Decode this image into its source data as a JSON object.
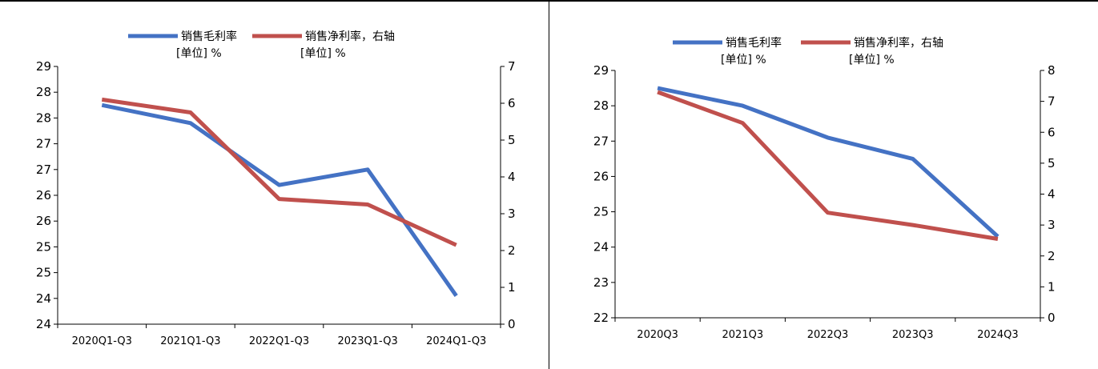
{
  "chart_data": [
    {
      "type": "line",
      "categories": [
        "2020Q1-Q3",
        "2021Q1-Q3",
        "2022Q1-Q3",
        "2023Q1-Q3",
        "2024Q1-Q3"
      ],
      "y_left": {
        "range": [
          24,
          29
        ],
        "tick_labels": [
          "24",
          "24",
          "25",
          "25",
          "26",
          "26",
          "27",
          "27",
          "28",
          "28",
          "29"
        ]
      },
      "y_right": {
        "range": [
          0,
          7
        ],
        "tick_labels": [
          "0",
          "1",
          "2",
          "3",
          "4",
          "5",
          "6",
          "7"
        ]
      },
      "series": [
        {
          "name": "销售毛利率",
          "unit": "[单位] %",
          "axis": "left",
          "color": "#4472C4",
          "values": [
            28.25,
            27.9,
            26.7,
            27.0,
            24.55
          ]
        },
        {
          "name": "销售净利率，右轴",
          "unit": "[单位] %",
          "axis": "right",
          "color": "#C0504D",
          "values": [
            6.1,
            5.75,
            3.4,
            3.25,
            2.15
          ]
        }
      ],
      "legend": "top-center",
      "grid": false
    },
    {
      "type": "line",
      "categories": [
        "2020Q3",
        "2021Q3",
        "2022Q3",
        "2023Q3",
        "2024Q3"
      ],
      "y_left": {
        "range": [
          22,
          29
        ],
        "tick_labels": [
          "22",
          "23",
          "24",
          "25",
          "26",
          "27",
          "28",
          "29"
        ]
      },
      "y_right": {
        "range": [
          0,
          8
        ],
        "tick_labels": [
          "0",
          "1",
          "2",
          "3",
          "4",
          "5",
          "6",
          "7",
          "8"
        ]
      },
      "series": [
        {
          "name": "销售毛利率",
          "unit": "[单位] %",
          "axis": "left",
          "color": "#4472C4",
          "values": [
            28.5,
            28.0,
            27.1,
            26.5,
            24.3
          ]
        },
        {
          "name": "销售净利率，右轴",
          "unit": "[单位] %",
          "axis": "right",
          "color": "#C0504D",
          "values": [
            7.3,
            6.3,
            3.4,
            3.0,
            2.55
          ]
        }
      ],
      "legend": "top-center",
      "grid": false
    }
  ]
}
